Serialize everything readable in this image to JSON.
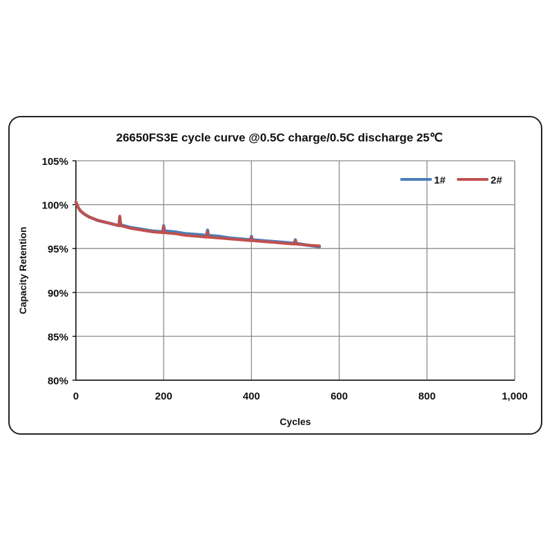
{
  "chart_data": {
    "type": "line",
    "title": "26650FS3E cycle curve @0.5C charge/0.5C discharge 25℃",
    "xlabel": "Cycles",
    "ylabel": "Capacity Retention",
    "xlim": [
      0,
      1000
    ],
    "ylim": [
      80,
      105
    ],
    "xticks": [
      "0",
      "200",
      "400",
      "600",
      "800",
      "1,000"
    ],
    "yticks": [
      "80%",
      "85%",
      "90%",
      "95%",
      "100%",
      "105%"
    ],
    "grid": true,
    "legend_position": "top-right",
    "series": [
      {
        "name": "1#",
        "color": "#4a7ebb",
        "x": [
          0,
          5,
          10,
          20,
          30,
          50,
          75,
          98,
          100,
          102,
          125,
          150,
          175,
          198,
          200,
          202,
          225,
          250,
          275,
          298,
          300,
          302,
          325,
          350,
          375,
          398,
          400,
          402,
          425,
          450,
          475,
          498,
          500,
          502,
          525,
          555
        ],
        "y": [
          100.3,
          99.7,
          99.3,
          98.9,
          98.6,
          98.2,
          97.9,
          97.6,
          98.6,
          97.7,
          97.4,
          97.2,
          97.0,
          96.9,
          97.6,
          97.0,
          96.9,
          96.7,
          96.6,
          96.5,
          97.1,
          96.5,
          96.4,
          96.2,
          96.1,
          96.0,
          96.4,
          96.0,
          95.9,
          95.8,
          95.7,
          95.6,
          96.0,
          95.6,
          95.4,
          95.2
        ]
      },
      {
        "name": "2#",
        "color": "#c0504d",
        "x": [
          0,
          5,
          10,
          20,
          30,
          50,
          75,
          98,
          100,
          102,
          125,
          150,
          175,
          198,
          200,
          202,
          225,
          250,
          275,
          298,
          300,
          302,
          325,
          350,
          375,
          398,
          400,
          402,
          425,
          450,
          475,
          498,
          500,
          502,
          525,
          555
        ],
        "y": [
          100.3,
          99.7,
          99.3,
          98.9,
          98.6,
          98.2,
          97.9,
          97.6,
          98.7,
          97.6,
          97.3,
          97.1,
          96.9,
          96.8,
          97.5,
          96.8,
          96.7,
          96.5,
          96.4,
          96.3,
          96.9,
          96.3,
          96.2,
          96.1,
          96.0,
          95.9,
          96.3,
          95.9,
          95.8,
          95.7,
          95.6,
          95.5,
          95.9,
          95.5,
          95.4,
          95.3
        ]
      }
    ]
  }
}
